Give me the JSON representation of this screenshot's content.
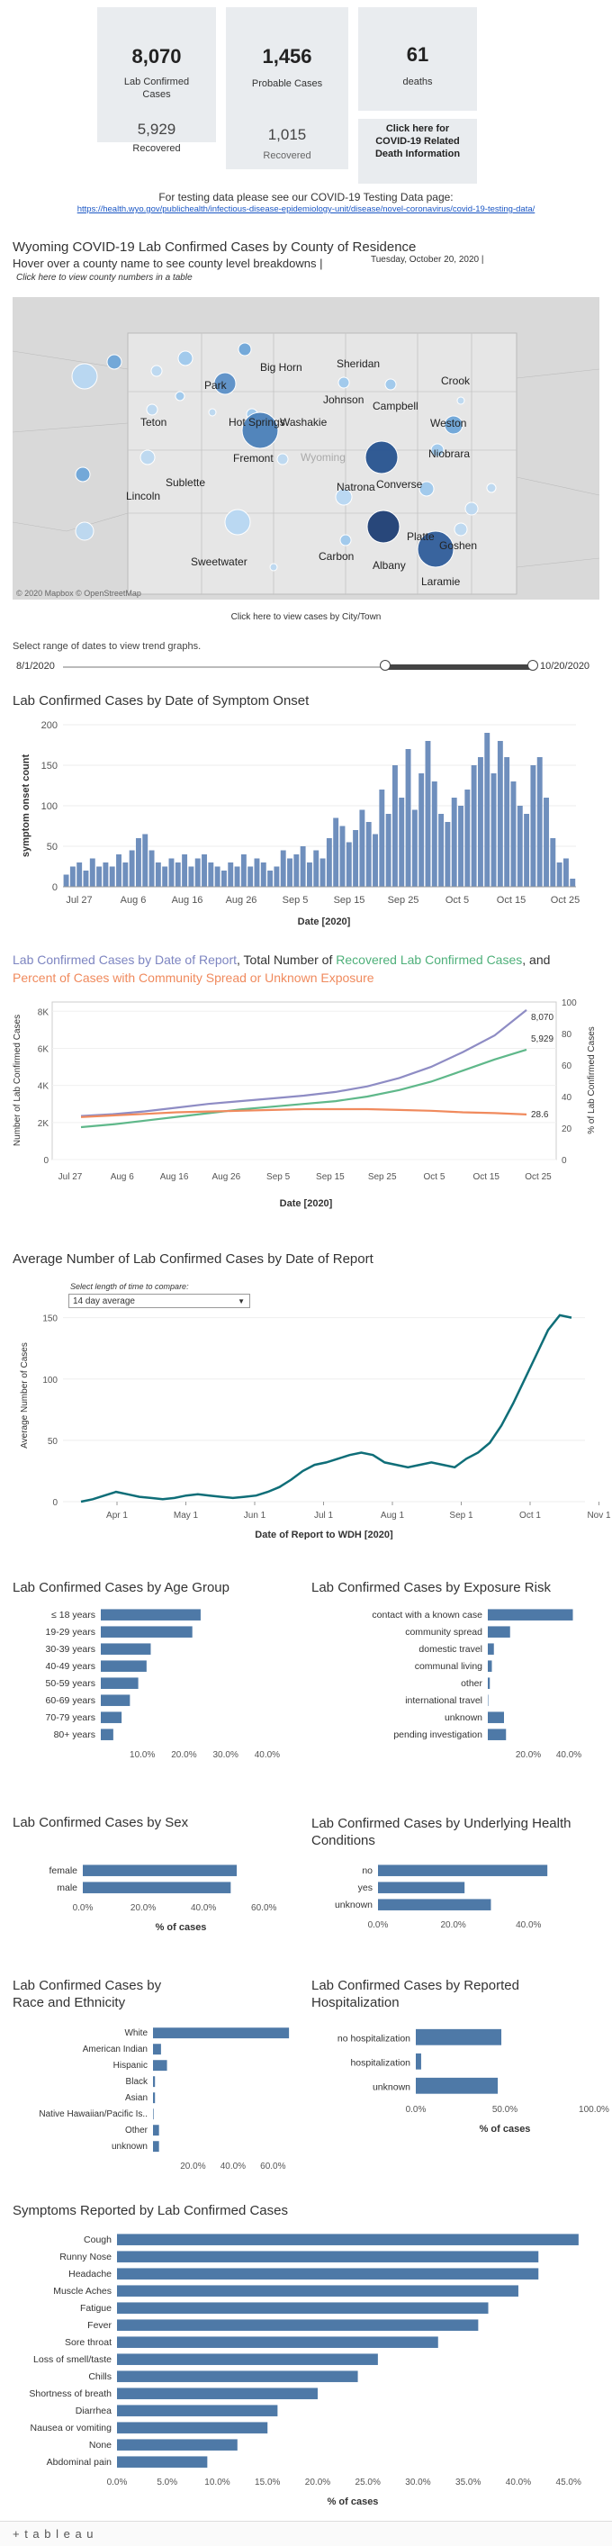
{
  "summary": {
    "lab_confirmed": {
      "value": "8,070",
      "label": "Lab Confirmed Cases"
    },
    "probable": {
      "value": "1,456",
      "label": "Probable Cases"
    },
    "deaths": {
      "value": "61",
      "label": "deaths"
    },
    "recovered": {
      "value": "5,929",
      "label": "Recovered"
    },
    "probable_recovered": {
      "value": "1,015",
      "label": "Recovered"
    },
    "death_info_button": "Click here for COVID-19 Related Death Information"
  },
  "testing": {
    "text": "For testing data please see our COVID-19 Testing Data page:",
    "url": "https://health.wyo.gov/publichealth/infectious-disease-epidemiology-unit/disease/novel-coronavirus/covid-19-testing-data/"
  },
  "county_section": {
    "title": "Wyoming COVID-19 Lab Confirmed Cases by County of Residence",
    "hover": "Hover over a county name to see county level breakdowns |",
    "date": "Tuesday, October 20, 2020 |",
    "table_link": "Click here to view county numbers in a table",
    "state_label": "Wyoming",
    "attribution": "© 2020 Mapbox  © OpenStreetMap",
    "city_link": "Click here to view cases by City/Town",
    "counties": [
      "Park",
      "Big Horn",
      "Sheridan",
      "Crook",
      "Campbell",
      "Johnson",
      "Teton",
      "Hot Springs",
      "Washakie",
      "Weston",
      "Fremont",
      "Natrona",
      "Niobrara",
      "Sublette",
      "Converse",
      "Lincoln",
      "Platte",
      "Goshen",
      "Sweetwater",
      "Carbon",
      "Albany",
      "Laramie"
    ]
  },
  "date_range": {
    "label": "Select range of dates to view trend graphs.",
    "start": "8/1/2020",
    "end": "10/20/2020"
  },
  "onset_chart": {
    "title": "Lab Confirmed Cases by Date of Symptom Onset",
    "ylabel": "symptom onset count",
    "xlabel": "Date [2020]",
    "yticks": [
      "0",
      "50",
      "100",
      "150",
      "200"
    ],
    "xticks": [
      "Jul 27",
      "Aug 6",
      "Aug 16",
      "Aug 26",
      "Sep 5",
      "Sep 15",
      "Sep 25",
      "Oct 5",
      "Oct 15",
      "Oct 25"
    ]
  },
  "report_chart": {
    "title_parts": [
      "Lab Confirmed Cases by Date of Report",
      ", Total Number of ",
      "Recovered Lab Confirmed Cases",
      ", and ",
      "Percent of Cases with Community Spread or Unknown Exposure"
    ],
    "ylabel_left": "Number of Lab Confirmed Cases",
    "ylabel_right": "% of Lab Confirmed Cases",
    "xlabel": "Date [2020]",
    "yticks_left": [
      "0",
      "2K",
      "4K",
      "6K",
      "8K"
    ],
    "yticks_right": [
      "0",
      "20",
      "40",
      "60",
      "80",
      "100"
    ],
    "xticks": [
      "Jul 27",
      "Aug 6",
      "Aug 16",
      "Aug 26",
      "Sep 5",
      "Sep 15",
      "Sep 25",
      "Oct 5",
      "Oct 15",
      "Oct 25"
    ],
    "end_labels": {
      "cases": "8,070",
      "recovered": "5,929",
      "pct": "28.6"
    }
  },
  "avg_chart": {
    "title": "Average Number of Lab Confirmed Cases by Date of Report",
    "select_label": "Select length of time to compare:",
    "select_value": "14 day average",
    "ylabel": "Average Number of Cases",
    "xlabel": "Date of Report to WDH [2020]",
    "yticks": [
      "0",
      "50",
      "100",
      "150"
    ],
    "xticks": [
      "Apr 1",
      "May 1",
      "Jun 1",
      "Jul 1",
      "Aug 1",
      "Sep 1",
      "Oct 1",
      "Nov 1"
    ]
  },
  "chart_data": [
    {
      "type": "bar",
      "title": "Lab Confirmed Cases by Date of Symptom Onset",
      "xlabel": "Date [2020]",
      "ylabel": "symptom onset count",
      "ylim": [
        0,
        200
      ],
      "x_start": "2020-07-27",
      "values": [
        15,
        25,
        30,
        20,
        35,
        25,
        30,
        25,
        40,
        30,
        45,
        60,
        65,
        45,
        30,
        25,
        35,
        30,
        40,
        25,
        35,
        40,
        30,
        25,
        20,
        30,
        25,
        40,
        25,
        35,
        30,
        20,
        25,
        45,
        35,
        40,
        50,
        30,
        45,
        35,
        60,
        85,
        75,
        55,
        70,
        95,
        80,
        65,
        120,
        90,
        150,
        110,
        170,
        95,
        140,
        180,
        130,
        90,
        80,
        110,
        100,
        120,
        150,
        160,
        190,
        140,
        180,
        160,
        130,
        100,
        90,
        150,
        160,
        110,
        60,
        30,
        35,
        10
      ]
    },
    {
      "type": "line",
      "title": "Lab Confirmed Cases by Date of Report, Total Number of Recovered Lab Confirmed Cases, and Percent of Cases with Community Spread or Unknown Exposure",
      "x_start": "2020-07-27",
      "x_end": "2020-10-20",
      "series": [
        {
          "name": "Lab Confirmed Cases by Date of Report",
          "axis": "left",
          "color": "#8e8cc4",
          "values": [
            2350,
            2450,
            2600,
            2800,
            3000,
            3150,
            3300,
            3450,
            3650,
            3950,
            4400,
            5000,
            5800,
            6700,
            8070
          ]
        },
        {
          "name": "Recovered Lab Confirmed Cases",
          "axis": "left",
          "color": "#5fb88a",
          "values": [
            1750,
            1900,
            2100,
            2300,
            2500,
            2700,
            2850,
            3000,
            3150,
            3400,
            3750,
            4200,
            4800,
            5400,
            5929
          ]
        },
        {
          "name": "Percent of Cases with Community Spread or Unknown Exposure",
          "axis": "right",
          "color": "#f08a5d",
          "values": [
            27,
            28,
            29,
            30,
            30.5,
            31,
            31.5,
            32,
            32,
            32,
            31.5,
            31,
            30,
            29.5,
            28.6
          ]
        }
      ],
      "ylim_left": [
        0,
        8500
      ],
      "ylim_right": [
        0,
        100
      ]
    },
    {
      "type": "line",
      "title": "Average Number of Lab Confirmed Cases by Date of Report",
      "x_start": "2020-03-15",
      "x_end": "2020-10-20",
      "ylim": [
        0,
        160
      ],
      "series": [
        {
          "name": "14 day average",
          "color": "#0f6e78",
          "values": [
            0,
            2,
            5,
            8,
            6,
            4,
            3,
            2,
            3,
            5,
            6,
            5,
            4,
            3,
            4,
            5,
            8,
            12,
            18,
            25,
            30,
            32,
            35,
            38,
            40,
            38,
            32,
            30,
            28,
            30,
            32,
            30,
            28,
            35,
            40,
            48,
            62,
            80,
            100,
            120,
            140,
            152,
            150
          ]
        }
      ]
    },
    {
      "type": "bar",
      "title": "Lab Confirmed Cases by Age Group",
      "categories": [
        "≤ 18 years",
        "19-29 years",
        "30-39 years",
        "40-49 years",
        "50-59 years",
        "60-69 years",
        "70-79 years",
        "80+ years"
      ],
      "values": [
        24,
        22,
        12,
        11,
        9,
        7,
        5,
        3
      ],
      "xticks": [
        "10.0%",
        "20.0%",
        "30.0%",
        "40.0%"
      ],
      "xlim": [
        0,
        45
      ]
    },
    {
      "type": "bar",
      "title": "Lab Confirmed Cases by Exposure Risk",
      "categories": [
        "contact with a known case",
        "community spread",
        "domestic travel",
        "communal living",
        "other",
        "international travel",
        "unknown",
        "pending investigation"
      ],
      "values": [
        42,
        11,
        3,
        2,
        1,
        0.2,
        8,
        9
      ],
      "xticks": [
        "20.0%",
        "40.0%"
      ],
      "xlim": [
        0,
        48
      ]
    },
    {
      "type": "bar",
      "title": "Lab Confirmed Cases by Sex",
      "categories": [
        "female",
        "male"
      ],
      "values": [
        51,
        49
      ],
      "xticks": [
        "0.0%",
        "20.0%",
        "40.0%",
        "60.0%"
      ],
      "xlim": [
        0,
        65
      ],
      "xlabel": "% of cases"
    },
    {
      "type": "bar",
      "title": "Lab Confirmed Cases by Underlying Health Conditions",
      "categories": [
        "no",
        "yes",
        "unknown"
      ],
      "values": [
        45,
        23,
        30
      ],
      "xticks": [
        "0.0%",
        "20.0%",
        "40.0%"
      ],
      "xlim": [
        0,
        55
      ]
    },
    {
      "type": "bar",
      "title": "Lab Confirmed Cases by Race and Ethnicity",
      "categories": [
        "White",
        "American Indian",
        "Hispanic",
        "Black",
        "Asian",
        "Native Hawaiian/Pacific Is..",
        "Other",
        "unknown"
      ],
      "values": [
        68,
        4,
        7,
        1,
        1,
        0.3,
        3,
        3
      ],
      "xticks": [
        "20.0%",
        "40.0%",
        "60.0%"
      ],
      "xlim": [
        0,
        72
      ]
    },
    {
      "type": "bar",
      "title": "Lab Confirmed Cases by Reported Hospitalization",
      "categories": [
        "no hospitalization",
        "hospitalization",
        "unknown"
      ],
      "values": [
        48,
        3,
        46
      ],
      "xticks": [
        "0.0%",
        "50.0%",
        "100.0%"
      ],
      "xlim": [
        0,
        100
      ],
      "xlabel": "% of cases"
    },
    {
      "type": "bar",
      "title": "Symptoms Reported by Lab Confirmed Cases",
      "categories": [
        "Cough",
        "Runny Nose",
        "Headache",
        "Muscle Aches",
        "Fatigue",
        "Fever",
        "Sore throat",
        "Loss of smell/taste",
        "Chills",
        "Shortness of breath",
        "Diarrhea",
        "Nausea or vomiting",
        "None",
        "Abdominal pain"
      ],
      "values": [
        46,
        42,
        42,
        40,
        37,
        36,
        32,
        26,
        24,
        20,
        16,
        15,
        12,
        9
      ],
      "xticks": [
        "0.0%",
        "5.0%",
        "10.0%",
        "15.0%",
        "20.0%",
        "25.0%",
        "30.0%",
        "35.0%",
        "40.0%",
        "45.0%"
      ],
      "xlim": [
        0,
        47
      ],
      "xlabel": "% of cases"
    }
  ],
  "footer": {
    "brand": "+ t a b l e a u"
  }
}
